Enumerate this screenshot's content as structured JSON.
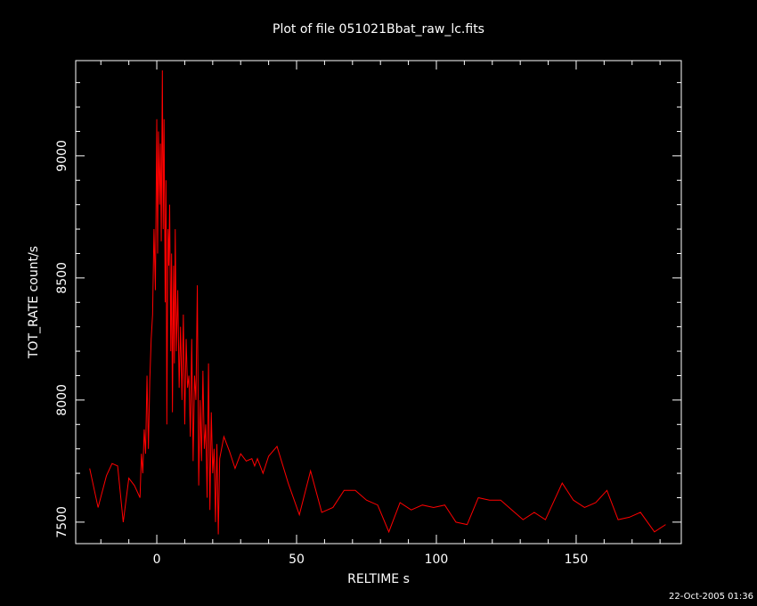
{
  "chart_data": {
    "type": "line",
    "title": "Plot of file 051021Bbat_raw_lc.fits",
    "xlabel": "RELTIME  s",
    "ylabel": "TOT_RATE  count/s",
    "footer": "22-Oct-2005 01:36",
    "xlim": [
      -29,
      187.6
    ],
    "ylim": [
      7412,
      9390
    ],
    "xticks": [
      0,
      50,
      100,
      150
    ],
    "yticks": [
      7500,
      8000,
      8500,
      9000
    ],
    "xminorticks": [
      -20,
      -10,
      10,
      20,
      30,
      40,
      60,
      70,
      80,
      90,
      110,
      120,
      130,
      140,
      160,
      170,
      180
    ],
    "yminorticks": [
      7600,
      7700,
      7800,
      7900,
      8100,
      8200,
      8300,
      8400,
      8600,
      8700,
      8800,
      8900,
      9100,
      9200,
      9300
    ],
    "x": [
      -24,
      -21,
      -18,
      -16,
      -14,
      -12,
      -10,
      -8,
      -6,
      -5.5,
      -5,
      -4.5,
      -4,
      -3.5,
      -3,
      -2.5,
      -2,
      -1.5,
      -1,
      -0.5,
      0,
      0.3,
      0.6,
      1,
      1.3,
      1.6,
      2,
      2.3,
      2.6,
      3,
      3.3,
      3.6,
      4,
      4.3,
      4.6,
      5,
      5.3,
      5.6,
      6,
      6.3,
      6.6,
      7,
      7.5,
      8,
      8.5,
      9,
      9.5,
      10,
      10.5,
      11,
      11.5,
      12,
      12.5,
      13,
      13.5,
      14,
      14.5,
      15,
      15.5,
      16,
      16.5,
      17,
      17.5,
      18,
      18.5,
      19,
      19.5,
      20,
      20.5,
      21,
      21.5,
      22,
      22.5,
      24,
      26,
      28,
      30,
      32,
      34,
      35,
      36,
      38,
      40,
      43,
      47,
      51,
      55,
      59,
      63,
      67,
      71,
      75,
      79,
      83,
      87,
      91,
      95,
      99,
      103,
      107,
      111,
      115,
      119,
      123,
      127,
      131,
      135,
      139,
      145,
      149,
      153,
      157,
      161,
      165,
      169,
      173,
      178,
      182
    ],
    "series": [
      {
        "color": "#ff0000",
        "values": [
          7720,
          7560,
          7690,
          7740,
          7730,
          7500,
          7680,
          7650,
          7600,
          7780,
          7700,
          7880,
          7780,
          8100,
          7800,
          8080,
          8250,
          8350,
          8700,
          8450,
          9150,
          8600,
          9100,
          8800,
          9050,
          8650,
          9350,
          8700,
          9150,
          8400,
          8900,
          7900,
          8700,
          8550,
          8800,
          8200,
          8600,
          7950,
          8550,
          8150,
          8700,
          8200,
          8450,
          8050,
          8300,
          8000,
          8350,
          7900,
          8250,
          8050,
          8100,
          7850,
          8250,
          7750,
          8100,
          8000,
          8470,
          7650,
          8000,
          7750,
          8120,
          7800,
          7900,
          7600,
          8150,
          7550,
          7950,
          7700,
          7800,
          7500,
          7820,
          7450,
          7760,
          7850,
          7790,
          7720,
          7780,
          7750,
          7760,
          7730,
          7760,
          7700,
          7770,
          7810,
          7660,
          7530,
          7710,
          7540,
          7560,
          7630,
          7630,
          7590,
          7570,
          7460,
          7580,
          7550,
          7570,
          7560,
          7570,
          7500,
          7490,
          7600,
          7590,
          7590,
          7550,
          7510,
          7540,
          7510,
          7660,
          7590,
          7560,
          7580,
          7630,
          7510,
          7520,
          7540,
          7460,
          7490
        ]
      }
    ]
  }
}
